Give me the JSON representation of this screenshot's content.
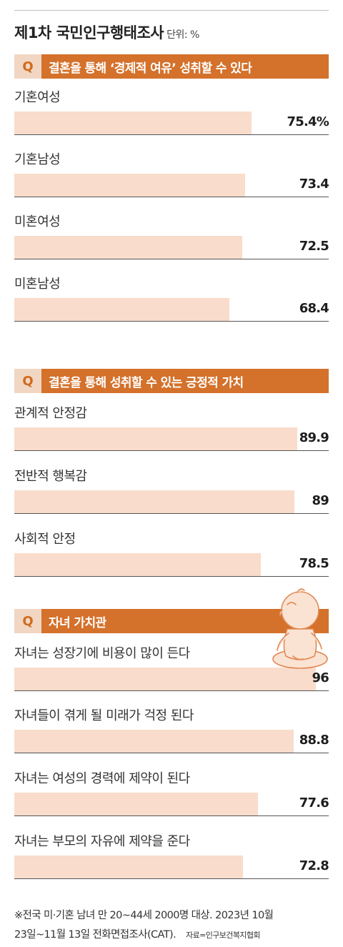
{
  "title": "제1차 국민인구행태조사",
  "unit": "단위: %",
  "colors": {
    "accent": "#d4712b",
    "bar": "#f9dccb",
    "qbox": "#f1d7c3"
  },
  "chart_data": [
    {
      "type": "bar",
      "q": "Q",
      "title": "결혼을 통해 ‘경제적 여유’ 성취할 수 있다",
      "categories": [
        "기혼여성",
        "기혼남성",
        "미혼여성",
        "미혼남성"
      ],
      "values": [
        75.4,
        73.4,
        72.5,
        68.4
      ],
      "value_labels": [
        "75.4%",
        "73.4",
        "72.5",
        "68.4"
      ],
      "xlim": [
        0,
        100
      ]
    },
    {
      "type": "bar",
      "q": "Q",
      "title": "결혼을 통해 성취할 수 있는 긍정적 가치",
      "categories": [
        "관계적 안정감",
        "전반적 행복감",
        "사회적 안정"
      ],
      "values": [
        89.9,
        89,
        78.5
      ],
      "value_labels": [
        "89.9",
        "89",
        "78.5"
      ],
      "xlim": [
        0,
        100
      ]
    },
    {
      "type": "bar",
      "q": "Q",
      "title": "자녀 가치관",
      "categories": [
        "자녀는 성장기에 비용이 많이 든다",
        "자녀들이 겪게 될 미래가 걱정 된다",
        "자녀는 여성의 경력에 제약이 된다",
        "자녀는 부모의 자유에 제약을 준다"
      ],
      "values": [
        96,
        88.8,
        77.6,
        72.8
      ],
      "value_labels": [
        "96",
        "88.8",
        "77.6",
        "72.8"
      ],
      "xlim": [
        0,
        100
      ]
    }
  ],
  "footnote": {
    "line1": "※전국 미·기혼 남녀 만 20~44세 2000명 대상. 2023년 10월",
    "line2": "23일~11월 13일 전화면접조사(CAT).",
    "source": "자료=인구보건복지협회"
  }
}
